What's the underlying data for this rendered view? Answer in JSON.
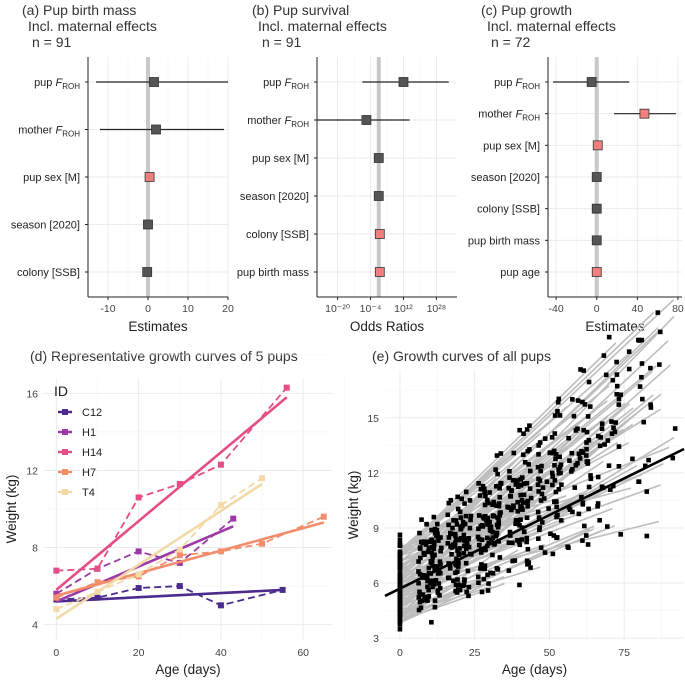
{
  "chart_data": [
    {
      "type": "forest",
      "title": "(a) Pup birth mass",
      "subtitle": "Incl. maternal effects",
      "n_label": "n = 91",
      "xlabel": "Estimates",
      "xlim": [
        -15,
        20
      ],
      "xticks": [
        -10,
        0,
        10,
        20
      ],
      "xtick_labels": [
        "-10",
        "0",
        "10",
        "20"
      ],
      "terms": [
        {
          "label": "pup",
          "sub": "F",
          "subsub": "ROH",
          "est": 1.5,
          "lo": -13,
          "hi": 20,
          "color": "#555555"
        },
        {
          "label": "mother",
          "sub": "F",
          "subsub": "ROH",
          "est": 2,
          "lo": -12,
          "hi": 19,
          "color": "#555555"
        },
        {
          "label": "pup sex [M]",
          "est": 0.4,
          "lo": 0.4,
          "hi": 0.4,
          "color": "#f08080"
        },
        {
          "label": "season [2020]",
          "est": 0,
          "lo": 0,
          "hi": 0,
          "color": "#555555"
        },
        {
          "label": "colony [SSB]",
          "est": -0.2,
          "lo": -0.2,
          "hi": -0.2,
          "color": "#555555"
        }
      ]
    },
    {
      "type": "forest",
      "title": "(b) Pup survival",
      "subtitle": "Incl. maternal effects",
      "n_label": "n = 91",
      "xlabel": "Odds Ratios",
      "xscale": "log10",
      "xlim": [
        -30,
        38
      ],
      "xticks": [
        -20,
        -4,
        12,
        28
      ],
      "xtick_labels": [
        "10⁻²⁰",
        "10⁻⁴",
        "10¹²",
        "10²⁸"
      ],
      "terms": [
        {
          "label": "pup",
          "sub": "F",
          "subsub": "ROH",
          "est": 12,
          "lo": -8,
          "hi": 34,
          "color": "#555555"
        },
        {
          "label": "mother",
          "sub": "F",
          "subsub": "ROH",
          "est": -6,
          "lo": -30,
          "hi": 15,
          "color": "#555555"
        },
        {
          "label": "pup sex [M]",
          "est": 0,
          "lo": 0,
          "hi": 0,
          "color": "#555555"
        },
        {
          "label": "season [2020]",
          "est": 0,
          "lo": 0,
          "hi": 0,
          "color": "#555555"
        },
        {
          "label": "colony [SSB]",
          "est": 0.5,
          "lo": 0.5,
          "hi": 0.5,
          "color": "#f08080"
        },
        {
          "label": "pup birth mass",
          "est": 0.5,
          "lo": 0.5,
          "hi": 0.5,
          "color": "#f08080"
        }
      ]
    },
    {
      "type": "forest",
      "title": "(c) Pup growth",
      "subtitle": "Incl. maternal effects",
      "n_label": "n = 72",
      "xlabel": "Estimates",
      "xlim": [
        -48,
        84
      ],
      "xticks": [
        -40,
        0,
        40,
        80
      ],
      "xtick_labels": [
        "-40",
        "0",
        "40",
        "80"
      ],
      "terms": [
        {
          "label": "pup",
          "sub": "F",
          "subsub": "ROH",
          "est": -5,
          "lo": -43,
          "hi": 32,
          "color": "#555555"
        },
        {
          "label": "mother",
          "sub": "F",
          "subsub": "ROH",
          "est": 47,
          "lo": 17,
          "hi": 78,
          "color": "#f08080"
        },
        {
          "label": "pup sex [M]",
          "est": 1,
          "lo": 1,
          "hi": 1,
          "color": "#f08080"
        },
        {
          "label": "season [2020]",
          "est": 0,
          "lo": 0,
          "hi": 0,
          "color": "#555555"
        },
        {
          "label": "colony [SSB]",
          "est": 0,
          "lo": 0,
          "hi": 0,
          "color": "#555555"
        },
        {
          "label": "pup birth mass",
          "est": 0,
          "lo": 0,
          "hi": 0,
          "color": "#555555"
        },
        {
          "label": "pup age",
          "est": 0,
          "lo": 0,
          "hi": 0,
          "color": "#f08080"
        }
      ]
    },
    {
      "type": "line",
      "title": "(d) Representative growth curves of 5 pups",
      "xlabel": "Age (days)",
      "ylabel": "Weight (kg)",
      "xlim": [
        -3,
        67
      ],
      "ylim": [
        3.2,
        16.8
      ],
      "xticks": [
        0,
        20,
        40,
        60
      ],
      "yticks": [
        4,
        8,
        12,
        16
      ],
      "legend_title": "ID",
      "series": [
        {
          "name": "C12",
          "color": "#4b2b8e",
          "x": [
            0,
            10,
            20,
            30,
            40,
            55
          ],
          "y": [
            5.3,
            5.4,
            5.9,
            6.0,
            5.0,
            5.8
          ],
          "fit": [
            5.2,
            5.8
          ]
        },
        {
          "name": "H1",
          "color": "#9b3aa7",
          "x": [
            0,
            10,
            20,
            30,
            43
          ],
          "y": [
            5.6,
            6.9,
            7.8,
            7.2,
            9.5
          ],
          "fit": [
            5.2,
            9.1
          ]
        },
        {
          "name": "H14",
          "color": "#e44d87",
          "x": [
            0,
            10,
            20,
            30,
            40,
            56
          ],
          "y": [
            6.8,
            6.9,
            10.6,
            11.3,
            12.3,
            16.3
          ],
          "fit": [
            5.8,
            15.8
          ]
        },
        {
          "name": "H7",
          "color": "#f28d6b",
          "x": [
            0,
            10,
            20,
            30,
            40,
            50,
            65
          ],
          "y": [
            5.4,
            6.2,
            6.5,
            7.6,
            7.8,
            8.2,
            9.6
          ],
          "fit": [
            5.5,
            9.3
          ]
        },
        {
          "name": "T4",
          "color": "#f4d9a8",
          "x": [
            0,
            10,
            20,
            30,
            40,
            50
          ],
          "y": [
            4.8,
            5.7,
            6.6,
            7.9,
            10.2,
            11.6
          ],
          "fit": [
            4.3,
            11.3
          ]
        }
      ]
    },
    {
      "type": "scatter",
      "title": "(e) Growth curves of all pups",
      "xlabel": "Age (days)",
      "ylabel": "Weight (kg)",
      "xlim": [
        -5,
        95
      ],
      "ylim": [
        2.9,
        17.6
      ],
      "xticks": [
        0,
        25,
        50,
        75
      ],
      "yticks": [
        3,
        6,
        9,
        12,
        15
      ],
      "overall_fit": {
        "x": [
          -5,
          95
        ],
        "y": [
          5.3,
          13.3
        ]
      },
      "series_count": 91
    }
  ]
}
